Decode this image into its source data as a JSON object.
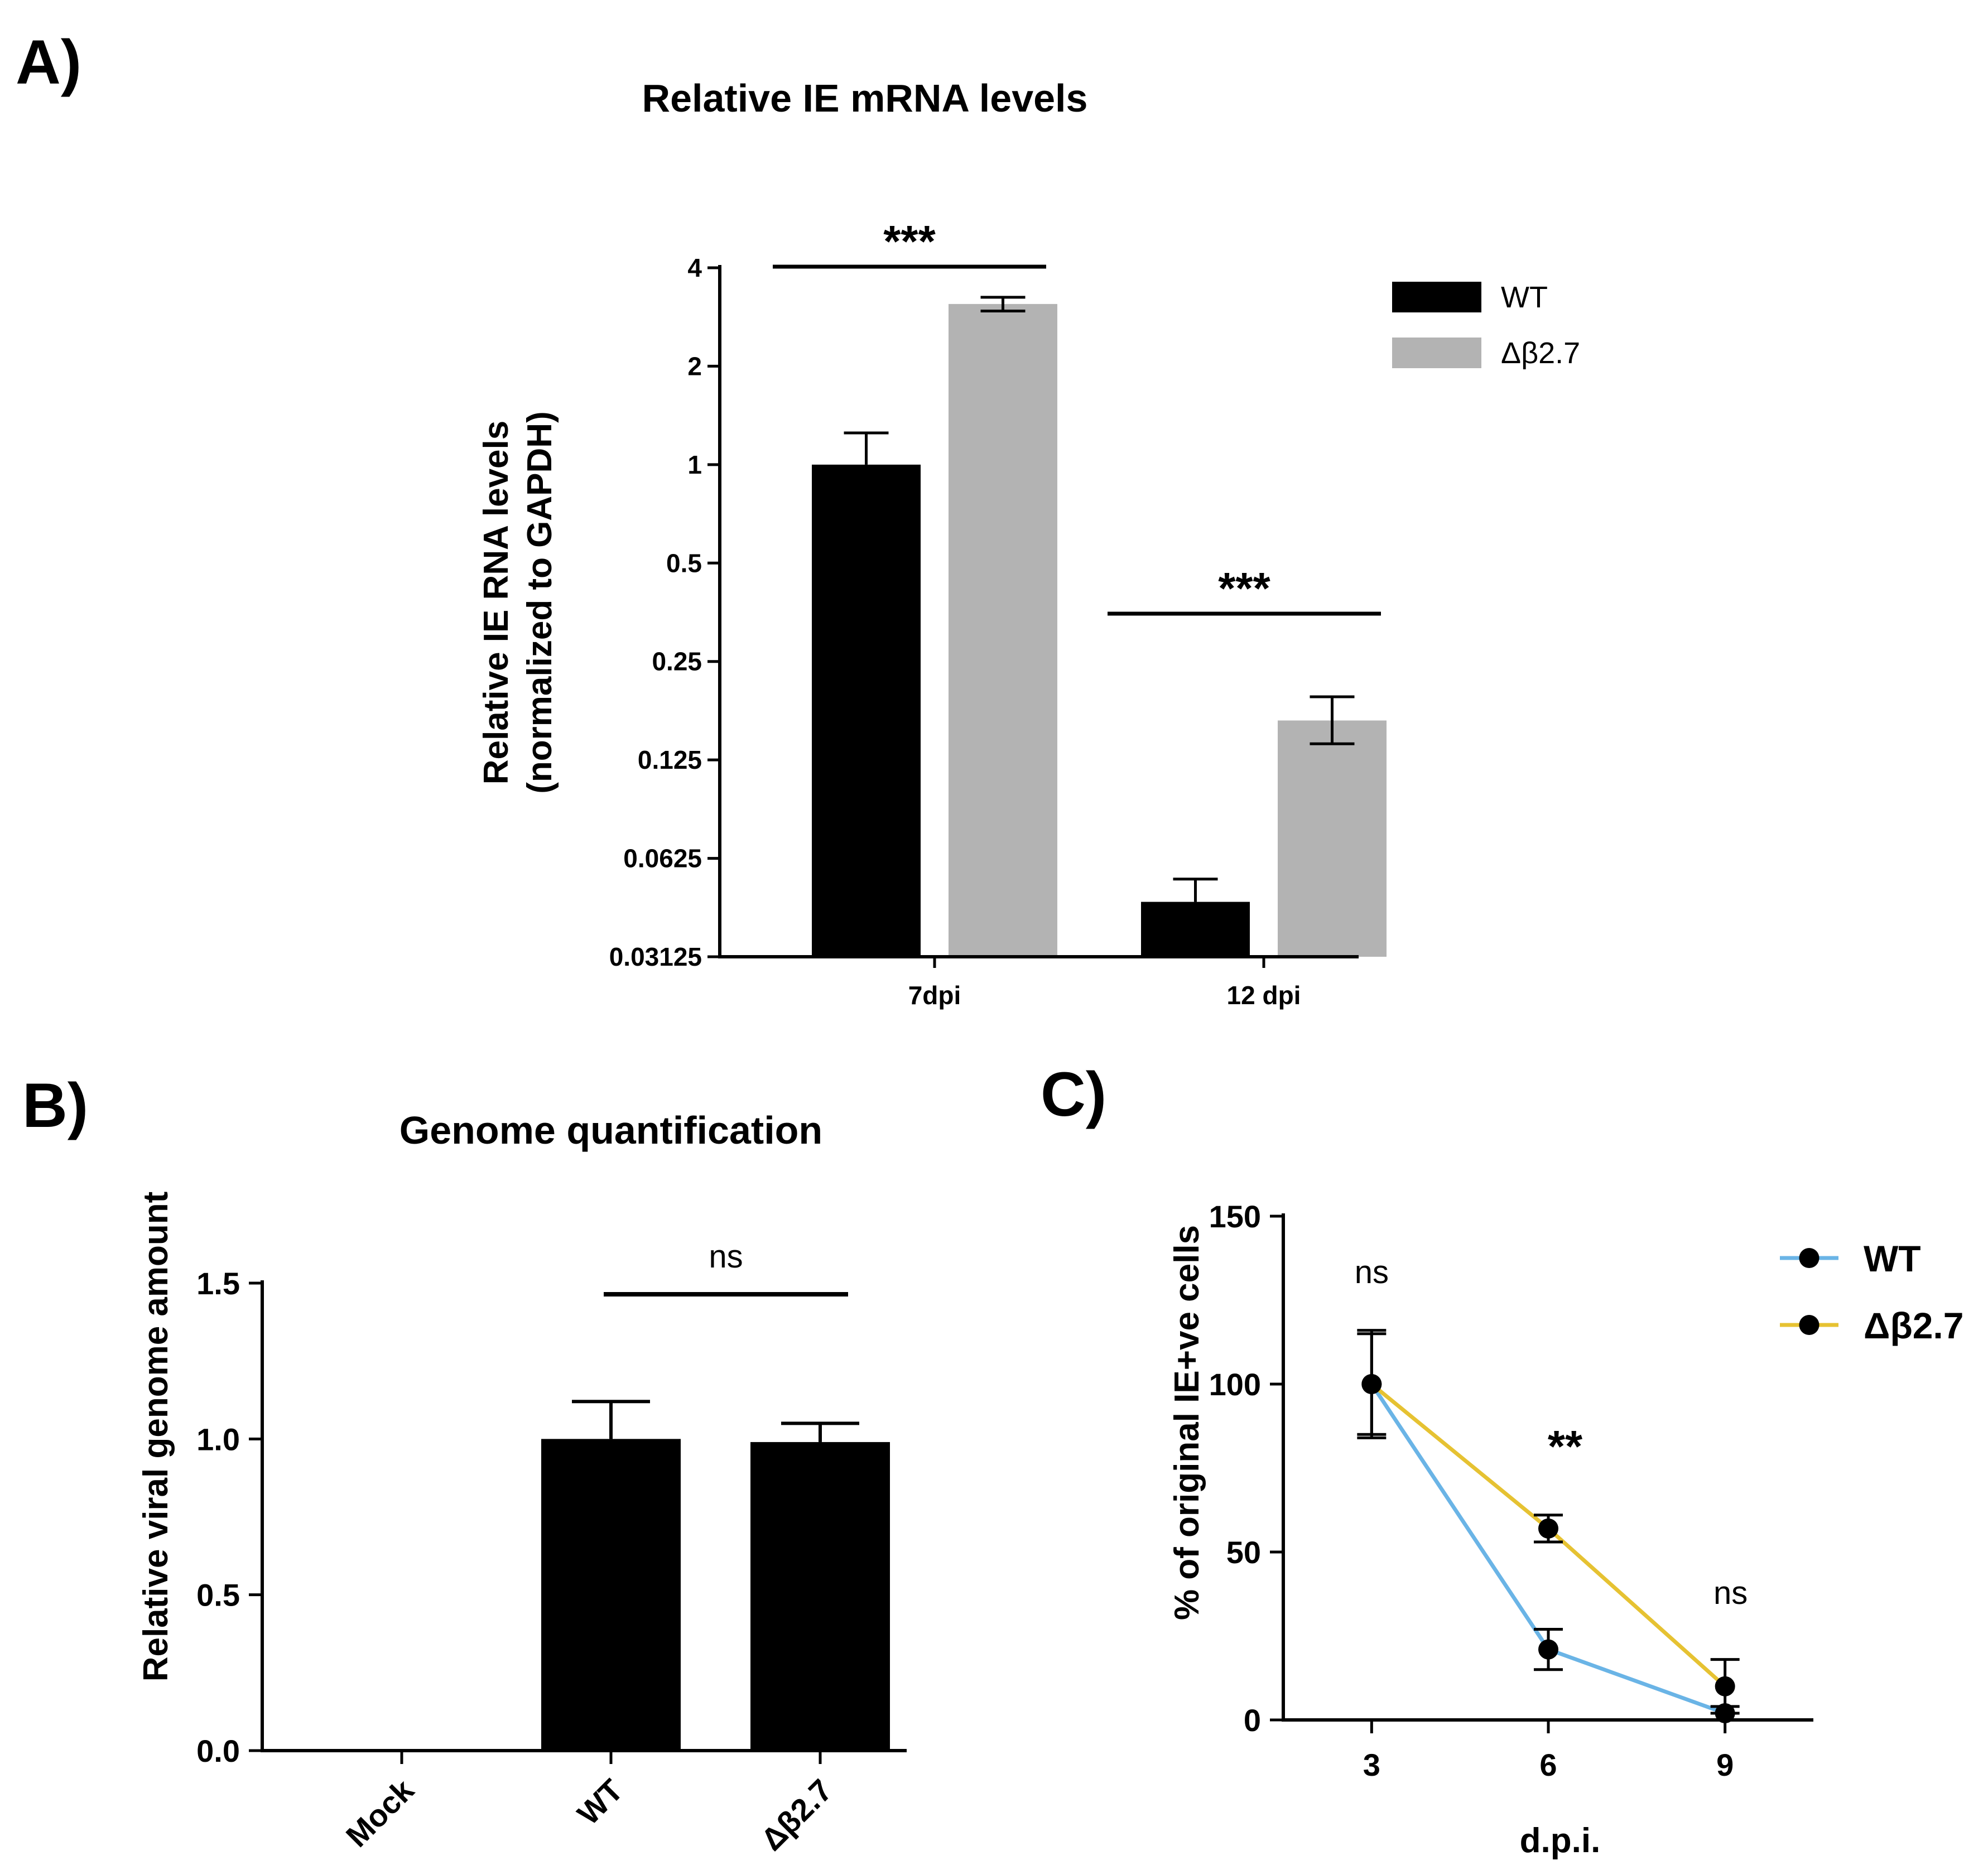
{
  "panels": {
    "a": "A)",
    "b": "B)",
    "c": "C)"
  },
  "colors": {
    "wt": "#000000",
    "mutant": "#b3b3b3",
    "wt_line": "#6ab4e6",
    "mutant_line": "#e6c232"
  },
  "chart_data": [
    {
      "type": "bar",
      "title": "Relative IE mRNA levels",
      "ylabel_lines": [
        "Relative IE RNA levels",
        "(normalized to GAPDH)"
      ],
      "yscale": "log2",
      "ylim": [
        0.03125,
        4
      ],
      "yticks": [
        0.03125,
        0.0625,
        0.125,
        0.25,
        0.5,
        1,
        2,
        4
      ],
      "ytick_labels": [
        "0.03125",
        "0.0625",
        "0.125",
        "0.25",
        "0.5",
        "1",
        "2",
        "4"
      ],
      "categories": [
        "7dpi",
        "12 dpi"
      ],
      "series": [
        {
          "name": "WT",
          "values": [
            1.0,
            0.046
          ],
          "err_upper": [
            1.25,
            0.054
          ]
        },
        {
          "name": "Δβ2.7",
          "values": [
            3.1,
            0.165
          ],
          "err_upper": [
            3.25,
            0.195
          ],
          "err_lower": [
            2.95,
            0.14
          ]
        }
      ],
      "significance": [
        "***",
        "***"
      ],
      "legend": [
        "WT",
        "Δβ2.7"
      ],
      "legend_position": "top-right"
    },
    {
      "type": "bar",
      "title": "Genome quantification",
      "ylabel": "Relative viral genome amount",
      "ylim": [
        0,
        1.5
      ],
      "yticks": [
        0.0,
        0.5,
        1.0,
        1.5
      ],
      "ytick_labels": [
        "0.0",
        "0.5",
        "1.0",
        "1.5"
      ],
      "categories": [
        "Mock",
        "WT",
        "Δβ2.7"
      ],
      "values": [
        0.0,
        1.0,
        0.99
      ],
      "err_upper": [
        0.0,
        1.12,
        1.05
      ],
      "significance": "ns"
    },
    {
      "type": "line",
      "xlabel": "d.p.i.",
      "ylabel": "% of original IE+ve cells",
      "x": [
        3,
        6,
        9
      ],
      "xticks": [
        "3",
        "6",
        "9"
      ],
      "xlim": [
        1.5,
        10.5
      ],
      "ylim": [
        0,
        150
      ],
      "yticks": [
        "0",
        "50",
        "100",
        "150"
      ],
      "series": [
        {
          "name": "WT",
          "values": [
            100,
            21,
            2
          ],
          "err": [
            16,
            6,
            2
          ]
        },
        {
          "name": "Δβ2.7",
          "values": [
            100,
            57,
            10
          ],
          "err": [
            15,
            4,
            8
          ]
        }
      ],
      "significance": [
        "ns",
        "**",
        "ns"
      ],
      "legend": [
        "WT",
        "Δβ2.7"
      ],
      "legend_position": "right"
    }
  ]
}
